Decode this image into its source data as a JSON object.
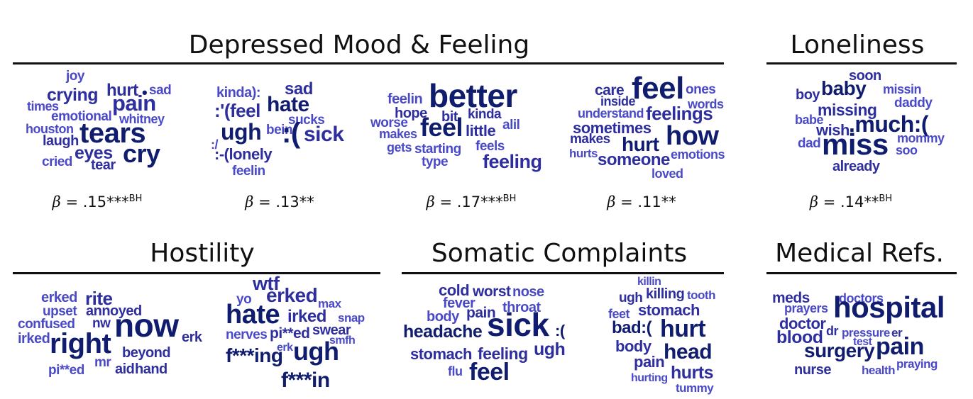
{
  "colors": {
    "dark": "#101c6e",
    "mid": "#2e2e9e",
    "light": "#4a4ac8"
  },
  "sections": [
    {
      "title": "Depressed Mood & Feeling"
    },
    {
      "title": "Loneliness"
    },
    {
      "title": "Hostility"
    },
    {
      "title": "Somatic Complaints"
    },
    {
      "title": "Medical Refs."
    }
  ],
  "betas": [
    {
      "symbol": "β",
      "value": "= .15***",
      "sup": "BH"
    },
    {
      "symbol": "β",
      "value": "= .13**",
      "sup": ""
    },
    {
      "symbol": "β",
      "value": "= .17***",
      "sup": "BH"
    },
    {
      "symbol": "β",
      "value": "= .11**",
      "sup": ""
    },
    {
      "symbol": "β",
      "value": "= .14**",
      "sup": "BH"
    }
  ],
  "clouds": [
    {
      "words": [
        {
          "t": "joy",
          "s": 19,
          "c": "light"
        },
        {
          "t": "crying",
          "s": 25,
          "c": "mid"
        },
        {
          "t": "hurt",
          "s": 24,
          "c": "mid"
        },
        {
          "t": "•",
          "s": 22,
          "c": "dark"
        },
        {
          "t": "sad",
          "s": 19,
          "c": "light"
        },
        {
          "t": "times",
          "s": 18,
          "c": "light"
        },
        {
          "t": "pain",
          "s": 31,
          "c": "mid"
        },
        {
          "t": "emotional",
          "s": 19,
          "c": "light"
        },
        {
          "t": "whitney",
          "s": 18,
          "c": "light"
        },
        {
          "t": "houston",
          "s": 18,
          "c": "light"
        },
        {
          "t": "tears",
          "s": 40,
          "c": "dark"
        },
        {
          "t": "laugh",
          "s": 20,
          "c": "mid"
        },
        {
          "t": "eyes",
          "s": 25,
          "c": "mid"
        },
        {
          "t": "cry",
          "s": 36,
          "c": "dark"
        },
        {
          "t": "cried",
          "s": 19,
          "c": "light"
        },
        {
          "t": "tear",
          "s": 20,
          "c": "mid"
        }
      ]
    },
    {
      "words": [
        {
          "t": "kinda):",
          "s": 20,
          "c": "light"
        },
        {
          "t": "sad",
          "s": 24,
          "c": "mid"
        },
        {
          "t": ":'(feel",
          "s": 26,
          "c": "mid"
        },
        {
          "t": "hate",
          "s": 30,
          "c": "dark"
        },
        {
          "t": "sucks",
          "s": 19,
          "c": "light"
        },
        {
          "t": "ugh",
          "s": 32,
          "c": "dark"
        },
        {
          "t": "bein",
          "s": 19,
          "c": "light"
        },
        {
          "t": ":(",
          "s": 40,
          "c": "dark"
        },
        {
          "t": "sick",
          "s": 30,
          "c": "mid"
        },
        {
          "t": ":/",
          "s": 18,
          "c": "light"
        },
        {
          "t": ":-(lonely",
          "s": 22,
          "c": "mid"
        },
        {
          "t": "feelin",
          "s": 19,
          "c": "light"
        }
      ]
    },
    {
      "words": [
        {
          "t": "feelin",
          "s": 20,
          "c": "light"
        },
        {
          "t": "better",
          "s": 46,
          "c": "dark"
        },
        {
          "t": "hope",
          "s": 20,
          "c": "mid"
        },
        {
          "t": "bit",
          "s": 20,
          "c": "mid"
        },
        {
          "t": "kinda",
          "s": 19,
          "c": "mid"
        },
        {
          "t": "worse",
          "s": 19,
          "c": "light"
        },
        {
          "t": "alil",
          "s": 19,
          "c": "light"
        },
        {
          "t": "makes",
          "s": 18,
          "c": "light"
        },
        {
          "t": "feel",
          "s": 36,
          "c": "dark"
        },
        {
          "t": "little",
          "s": 22,
          "c": "mid"
        },
        {
          "t": "gets",
          "s": 18,
          "c": "light"
        },
        {
          "t": "starting",
          "s": 19,
          "c": "light"
        },
        {
          "t": "feels",
          "s": 19,
          "c": "light"
        },
        {
          "t": "type",
          "s": 19,
          "c": "light"
        },
        {
          "t": "feeling",
          "s": 27,
          "c": "mid"
        }
      ]
    },
    {
      "words": [
        {
          "t": "care",
          "s": 21,
          "c": "mid"
        },
        {
          "t": "feel",
          "s": 44,
          "c": "dark"
        },
        {
          "t": "ones",
          "s": 19,
          "c": "light"
        },
        {
          "t": "inside",
          "s": 18,
          "c": "mid"
        },
        {
          "t": "words",
          "s": 18,
          "c": "light"
        },
        {
          "t": "understand",
          "s": 18,
          "c": "light"
        },
        {
          "t": "feelings",
          "s": 26,
          "c": "mid"
        },
        {
          "t": "sometimes",
          "s": 22,
          "c": "mid"
        },
        {
          "t": "how",
          "s": 38,
          "c": "dark"
        },
        {
          "t": "makes",
          "s": 19,
          "c": "mid"
        },
        {
          "t": "hurts",
          "s": 17,
          "c": "light"
        },
        {
          "t": "hurt",
          "s": 28,
          "c": "dark"
        },
        {
          "t": "emotions",
          "s": 18,
          "c": "light"
        },
        {
          "t": "someone",
          "s": 24,
          "c": "mid"
        },
        {
          "t": "loved",
          "s": 18,
          "c": "light"
        }
      ]
    },
    {
      "words": [
        {
          "t": "soon",
          "s": 20,
          "c": "mid"
        },
        {
          "t": "boy",
          "s": 20,
          "c": "mid"
        },
        {
          "t": "baby",
          "s": 28,
          "c": "dark"
        },
        {
          "t": "missin",
          "s": 18,
          "c": "light"
        },
        {
          "t": "daddy",
          "s": 19,
          "c": "light"
        },
        {
          "t": "missing",
          "s": 23,
          "c": "mid"
        },
        {
          "t": "babe",
          "s": 18,
          "c": "light"
        },
        {
          "t": "wish",
          "s": 22,
          "c": "mid"
        },
        {
          "t": ".much:(",
          "s": 32,
          "c": "dark"
        },
        {
          "t": "dad",
          "s": 19,
          "c": "light"
        },
        {
          "t": "miss",
          "s": 42,
          "c": "dark"
        },
        {
          "t": "mommy",
          "s": 18,
          "c": "light"
        },
        {
          "t": "soo",
          "s": 18,
          "c": "light"
        },
        {
          "t": "already",
          "s": 20,
          "c": "mid"
        }
      ]
    },
    {
      "words": [
        {
          "t": "erked",
          "s": 20,
          "c": "light"
        },
        {
          "t": "rite",
          "s": 26,
          "c": "mid"
        },
        {
          "t": "upset",
          "s": 19,
          "c": "light"
        },
        {
          "t": "annoyed",
          "s": 20,
          "c": "mid"
        },
        {
          "t": "confused",
          "s": 19,
          "c": "light"
        },
        {
          "t": "nw",
          "s": 19,
          "c": "mid"
        },
        {
          "t": "now",
          "s": 46,
          "c": "dark"
        },
        {
          "t": "irked",
          "s": 20,
          "c": "light"
        },
        {
          "t": "right",
          "s": 40,
          "c": "dark"
        },
        {
          "t": "erk",
          "s": 20,
          "c": "mid"
        },
        {
          "t": "beyond",
          "s": 20,
          "c": "mid"
        },
        {
          "t": "mr",
          "s": 19,
          "c": "light"
        },
        {
          "t": "pi**ed",
          "s": 19,
          "c": "light"
        },
        {
          "t": "aid",
          "s": 20,
          "c": "mid"
        },
        {
          "t": "hand",
          "s": 20,
          "c": "mid"
        }
      ]
    },
    {
      "words": [
        {
          "t": "wtf",
          "s": 27,
          "c": "mid"
        },
        {
          "t": "yo",
          "s": 19,
          "c": "light"
        },
        {
          "t": "erked",
          "s": 28,
          "c": "mid"
        },
        {
          "t": "max",
          "s": 17,
          "c": "light"
        },
        {
          "t": "hate",
          "s": 38,
          "c": "dark"
        },
        {
          "t": "irked",
          "s": 24,
          "c": "mid"
        },
        {
          "t": "snap",
          "s": 17,
          "c": "light"
        },
        {
          "t": "nerves",
          "s": 19,
          "c": "light"
        },
        {
          "t": "pi**ed",
          "s": 21,
          "c": "mid"
        },
        {
          "t": "swear",
          "s": 20,
          "c": "mid"
        },
        {
          "t": "smfh",
          "s": 16,
          "c": "light"
        },
        {
          "t": "erk",
          "s": 16,
          "c": "light"
        },
        {
          "t": "f***ing",
          "s": 28,
          "c": "dark"
        },
        {
          "t": "ugh",
          "s": 36,
          "c": "dark"
        },
        {
          "t": "f***in",
          "s": 30,
          "c": "dark"
        }
      ]
    },
    {
      "words": [
        {
          "t": "cold",
          "s": 22,
          "c": "mid"
        },
        {
          "t": "worst",
          "s": 21,
          "c": "mid"
        },
        {
          "t": "nose",
          "s": 20,
          "c": "light"
        },
        {
          "t": "fever",
          "s": 20,
          "c": "light"
        },
        {
          "t": "throat",
          "s": 20,
          "c": "light"
        },
        {
          "t": "body",
          "s": 20,
          "c": "light"
        },
        {
          "t": "pain",
          "s": 21,
          "c": "mid"
        },
        {
          "t": "headache",
          "s": 25,
          "c": "dark"
        },
        {
          "t": "sick",
          "s": 46,
          "c": "dark"
        },
        {
          "t": ":(",
          "s": 22,
          "c": "dark"
        },
        {
          "t": "stomach",
          "s": 22,
          "c": "mid"
        },
        {
          "t": "feeling",
          "s": 23,
          "c": "mid"
        },
        {
          "t": "ugh",
          "s": 25,
          "c": "mid"
        },
        {
          "t": "flu",
          "s": 18,
          "c": "light"
        },
        {
          "t": "feel",
          "s": 34,
          "c": "dark"
        }
      ]
    },
    {
      "words": [
        {
          "t": "killin",
          "s": 16,
          "c": "light"
        },
        {
          "t": "ugh",
          "s": 19,
          "c": "mid"
        },
        {
          "t": "killing",
          "s": 20,
          "c": "mid"
        },
        {
          "t": "tooth",
          "s": 17,
          "c": "light"
        },
        {
          "t": "feet",
          "s": 18,
          "c": "light"
        },
        {
          "t": "stomach",
          "s": 22,
          "c": "mid"
        },
        {
          "t": "bad:(",
          "s": 24,
          "c": "dark"
        },
        {
          "t": "hurt",
          "s": 34,
          "c": "dark"
        },
        {
          "t": "body",
          "s": 22,
          "c": "mid"
        },
        {
          "t": "pain",
          "s": 22,
          "c": "mid"
        },
        {
          "t": "head",
          "s": 30,
          "c": "dark"
        },
        {
          "t": "hurting",
          "s": 16,
          "c": "light"
        },
        {
          "t": "hurts",
          "s": 25,
          "c": "mid"
        },
        {
          "t": "tummy",
          "s": 17,
          "c": "light"
        }
      ]
    },
    {
      "words": [
        {
          "t": "meds",
          "s": 21,
          "c": "mid"
        },
        {
          "t": "doctors",
          "s": 18,
          "c": "light"
        },
        {
          "t": "prayers",
          "s": 18,
          "c": "light"
        },
        {
          "t": "hospital",
          "s": 42,
          "c": "dark"
        },
        {
          "t": "doctor",
          "s": 22,
          "c": "mid"
        },
        {
          "t": "dr",
          "s": 18,
          "c": "mid"
        },
        {
          "t": "pressure",
          "s": 17,
          "c": "light"
        },
        {
          "t": "er",
          "s": 17,
          "c": "mid"
        },
        {
          "t": "blood",
          "s": 25,
          "c": "mid"
        },
        {
          "t": "test",
          "s": 16,
          "c": "light"
        },
        {
          "t": "surgery",
          "s": 28,
          "c": "dark"
        },
        {
          "t": "pain",
          "s": 34,
          "c": "dark"
        },
        {
          "t": "nurse",
          "s": 20,
          "c": "mid"
        },
        {
          "t": "health",
          "s": 17,
          "c": "light"
        },
        {
          "t": "praying",
          "s": 17,
          "c": "light"
        }
      ]
    }
  ]
}
